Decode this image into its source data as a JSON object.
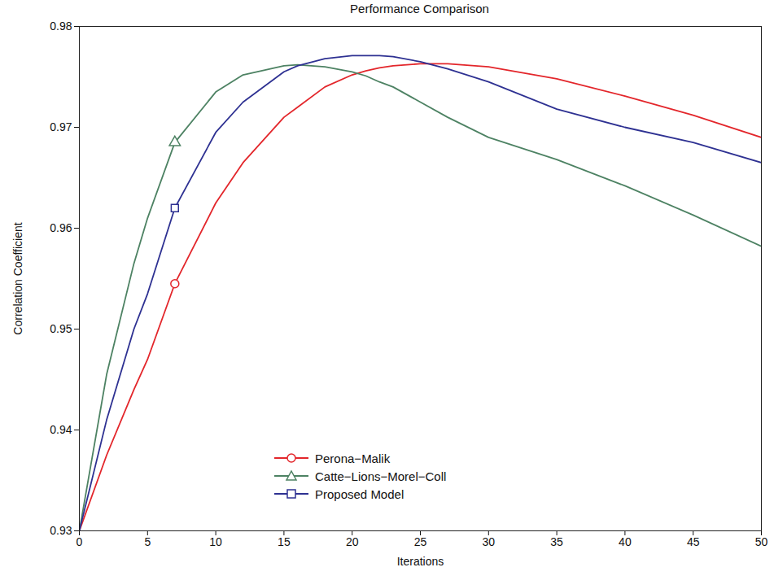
{
  "chart_data": {
    "type": "line",
    "title": "Performance Comparison",
    "x_label": "Iterations",
    "y_label": "Correlation Coefficient",
    "x": [
      0,
      2,
      4,
      5,
      7,
      10,
      12,
      15,
      16,
      18,
      20,
      21,
      22,
      23,
      25,
      27,
      30,
      35,
      40,
      45,
      50
    ],
    "series": [
      {
        "name": "Perona−Malik",
        "color": "#e3262b",
        "marker": "circle",
        "line_style": "solid",
        "marker_x": [
          7
        ],
        "values": [
          0.93,
          0.9375,
          0.944,
          0.947,
          0.9545,
          0.9625,
          0.9665,
          0.971,
          0.972,
          0.974,
          0.9752,
          0.9756,
          0.9759,
          0.9761,
          0.9763,
          0.9763,
          0.976,
          0.9748,
          0.9731,
          0.9712,
          0.969
        ]
      },
      {
        "name": "Catte−Lions−Morel−Coll",
        "color": "#4d8263",
        "marker": "triangle",
        "line_style": "solid",
        "marker_x": [
          7
        ],
        "values": [
          0.93,
          0.9455,
          0.9565,
          0.961,
          0.9685,
          0.9735,
          0.9752,
          0.9761,
          0.9762,
          0.976,
          0.9755,
          0.9751,
          0.9745,
          0.974,
          0.9725,
          0.971,
          0.969,
          0.9668,
          0.9642,
          0.9613,
          0.9582
        ]
      },
      {
        "name": "Proposed Model",
        "color": "#2e3192",
        "marker": "square",
        "line_style": "solid",
        "marker_x": [
          7
        ],
        "values": [
          0.93,
          0.941,
          0.95,
          0.9535,
          0.962,
          0.9695,
          0.9725,
          0.9755,
          0.9761,
          0.9768,
          0.9771,
          0.9771,
          0.9771,
          0.977,
          0.9765,
          0.9758,
          0.9745,
          0.9718,
          0.97,
          0.9685,
          0.9665
        ]
      }
    ],
    "xlim": [
      0,
      50
    ],
    "xticks": [
      0,
      5,
      10,
      15,
      20,
      25,
      30,
      35,
      40,
      45,
      50
    ],
    "ylim": [
      0.93,
      0.98
    ],
    "yticks": [
      0.93,
      0.94,
      0.95,
      0.96,
      0.97,
      0.98
    ],
    "grid": false,
    "legend": "lower center"
  }
}
